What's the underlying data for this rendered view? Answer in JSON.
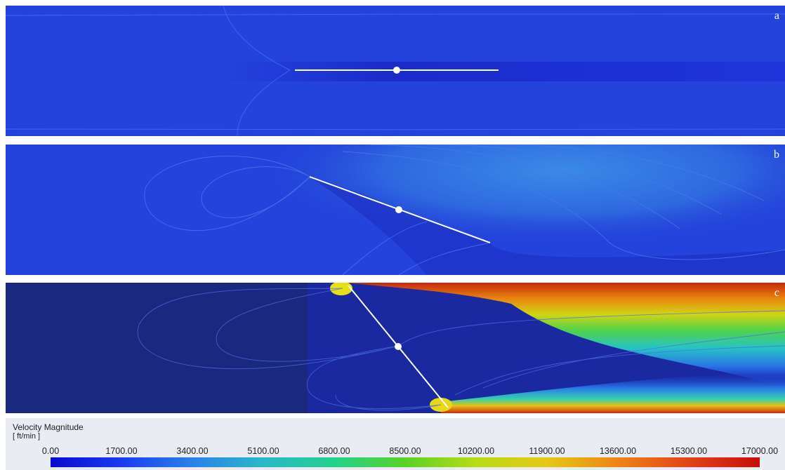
{
  "panels": [
    {
      "label": "a"
    },
    {
      "label": "b"
    },
    {
      "label": "c"
    }
  ],
  "legend": {
    "title": "Velocity Magnitude",
    "unit": "[ ft/min ]",
    "ticks": [
      "0.00",
      "1700.00",
      "3400.00",
      "5100.00",
      "6800.00",
      "8500.00",
      "10200.00",
      "11900.00",
      "13600.00",
      "15300.00",
      "17000.00"
    ],
    "colors": [
      "#0a0ad0",
      "#1a3cf0",
      "#2a82e8",
      "#2ab8c8",
      "#22d28c",
      "#5ad226",
      "#b8dc12",
      "#e6c812",
      "#ee8418",
      "#e24418",
      "#c80c0c"
    ]
  }
}
